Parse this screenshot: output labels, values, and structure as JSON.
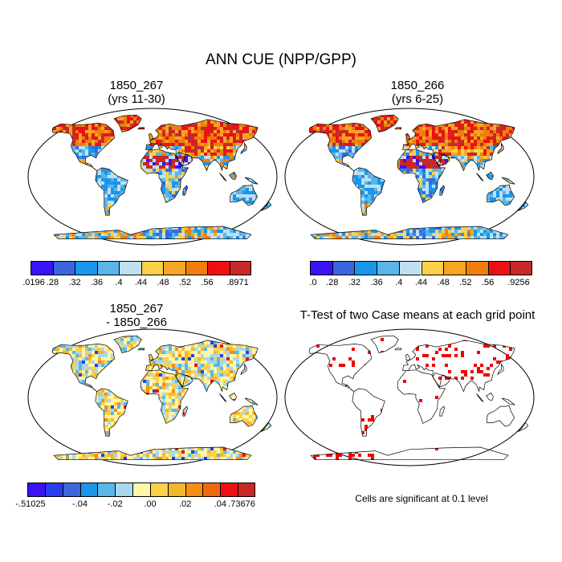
{
  "title": "ANN CUE (NPP/GPP)",
  "panels": [
    {
      "id": "case1",
      "title_line1": "1850_267",
      "title_line2": "(yrs 11-30)",
      "colorbar": {
        "colors": [
          "#3a12f5",
          "#3b66dc",
          "#1a96ea",
          "#5ab6e8",
          "#c0dff2",
          "#f9d14a",
          "#f5a623",
          "#f07e0c",
          "#ee1010",
          "#c92828"
        ],
        "tick_labels": [
          ".0196",
          ".28",
          ".32",
          ".36",
          ".4",
          ".44",
          ".48",
          ".52",
          ".56",
          ".8971"
        ]
      }
    },
    {
      "id": "case2",
      "title_line1": "1850_266",
      "title_line2": "(yrs 6-25)",
      "colorbar": {
        "colors": [
          "#3a12f5",
          "#3b66dc",
          "#1a96ea",
          "#5ab6e8",
          "#c0dff2",
          "#f9d14a",
          "#f5a623",
          "#f07e0c",
          "#ee1010",
          "#c92828"
        ],
        "tick_labels": [
          ".0",
          ".28",
          ".32",
          ".36",
          ".4",
          ".44",
          ".48",
          ".52",
          ".56",
          ".9256"
        ]
      }
    },
    {
      "id": "difference",
      "title_line1": "1850_267",
      "title_line2": "- 1850_266",
      "colorbar": {
        "colors": [
          "#3a12f5",
          "#2a3cf0",
          "#3b66dc",
          "#1a96ea",
          "#5ab6e8",
          "#a7d8f0",
          "#fff6a8",
          "#f9d14a",
          "#f5b62a",
          "#f58f12",
          "#f06a0c",
          "#ee1010",
          "#c92828"
        ],
        "tick_labels": [
          "-.51025",
          "-.04",
          "-.02",
          ".00",
          ".02",
          ".04",
          ".73676"
        ]
      }
    },
    {
      "id": "ttest",
      "title_line1": "T-Test of two Case means at each grid point",
      "title_line2": "",
      "note": "Cells are significant at 0.1 level",
      "significance_color": "#ee0000"
    }
  ]
}
